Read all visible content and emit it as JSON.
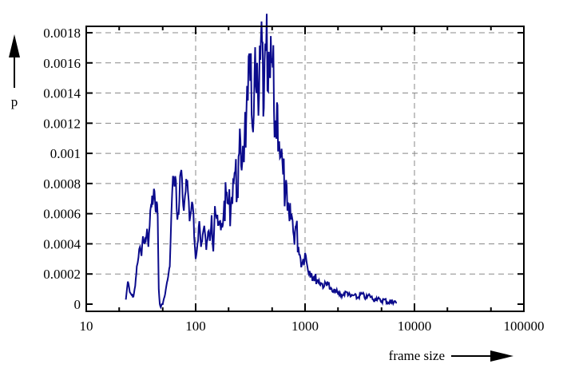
{
  "chart_data": {
    "type": "line",
    "title": "",
    "xlabel": "frame size",
    "ylabel": "p",
    "x_scale": "log",
    "xlim": [
      10,
      150000
    ],
    "ylim": [
      -5e-05,
      0.00183
    ],
    "grid": true,
    "legend": null,
    "x_ticks": [
      "10",
      "100",
      "1000",
      "10000",
      "100000"
    ],
    "y_ticks": [
      "0",
      "0.0002",
      "0.0004",
      "0.0006",
      "0.0008",
      "0.001",
      "0.0012",
      "0.0014",
      "0.0016",
      "0.0018"
    ],
    "series": [
      {
        "name": "p",
        "color": "#0b0b8c",
        "x": [
          23,
          24,
          25,
          26,
          27,
          28,
          29,
          30,
          31,
          32,
          33,
          34,
          35,
          36,
          37,
          38,
          39,
          40,
          41,
          42,
          43,
          44,
          45,
          46,
          47,
          48,
          49,
          50,
          52,
          54,
          56,
          58,
          60,
          62,
          64,
          66,
          68,
          70,
          72,
          74,
          76,
          78,
          80,
          82,
          85,
          88,
          91,
          94,
          97,
          100,
          104,
          108,
          112,
          116,
          120,
          125,
          130,
          135,
          140,
          145,
          150,
          160,
          170,
          180,
          190,
          200,
          210,
          220,
          230,
          240,
          250,
          260,
          270,
          280,
          290,
          300,
          315,
          330,
          345,
          360,
          375,
          390,
          405,
          420,
          440,
          460,
          480,
          500,
          520,
          540,
          560,
          580,
          600,
          630,
          660,
          690,
          720,
          750,
          790,
          830,
          870,
          910,
          950,
          1000,
          1050,
          1100,
          1150,
          1200,
          1300,
          1400,
          1500,
          1600,
          1700,
          1800,
          1900,
          2000,
          2200,
          2400,
          2600,
          2800,
          3000,
          3300,
          3600,
          3900,
          4200,
          4500,
          4900,
          5300,
          5800,
          6300,
          6900
        ],
        "y": [
          3e-05,
          0.00015,
          8e-05,
          6e-05,
          5e-05,
          0.00012,
          0.00025,
          0.00031,
          0.00038,
          0.00032,
          0.00045,
          0.0004,
          0.00042,
          0.0005,
          0.00038,
          0.00052,
          0.00065,
          0.00072,
          0.0007,
          0.00075,
          0.00062,
          0.00068,
          0.00058,
          0.0001,
          0.0,
          -2e-05,
          0.0,
          0.0,
          5e-05,
          0.00012,
          0.00018,
          0.00025,
          0.0006,
          0.00085,
          0.00078,
          0.00082,
          0.00056,
          0.0006,
          0.00085,
          0.00089,
          0.00071,
          0.00062,
          0.00072,
          0.00083,
          0.00075,
          0.00055,
          0.00062,
          0.00066,
          0.00044,
          0.0003,
          0.0004,
          0.00055,
          0.00038,
          0.00046,
          0.00052,
          0.00036,
          0.00048,
          0.00042,
          0.00059,
          0.00035,
          0.00065,
          0.00052,
          0.00049,
          0.0006,
          0.00072,
          0.00066,
          0.00064,
          0.00082,
          0.00088,
          0.00073,
          0.001,
          0.00092,
          0.00105,
          0.00112,
          0.00122,
          0.00135,
          0.00148,
          0.00118,
          0.00153,
          0.0014,
          0.00125,
          0.00162,
          0.00174,
          0.0013,
          0.00168,
          0.00141,
          0.0015,
          0.00163,
          0.00128,
          0.00115,
          0.00132,
          0.00108,
          0.00098,
          0.00086,
          0.00074,
          0.00062,
          0.00055,
          0.0006,
          0.00045,
          0.00052,
          0.00038,
          0.0003,
          0.00028,
          0.00034,
          0.00025,
          0.00022,
          0.0002,
          0.00018,
          0.00016,
          0.00014,
          0.00012,
          0.00015,
          0.0001,
          8e-05,
          9e-05,
          7e-05,
          6e-05,
          8e-05,
          5e-05,
          6e-05,
          4e-05,
          7e-05,
          4e-05,
          6e-05,
          3e-05,
          4e-05,
          2e-05,
          3e-05,
          1e-05,
          2e-05,
          1e-05
        ]
      }
    ]
  },
  "axes": {
    "xlabel": "frame size",
    "ylabel": "p"
  }
}
